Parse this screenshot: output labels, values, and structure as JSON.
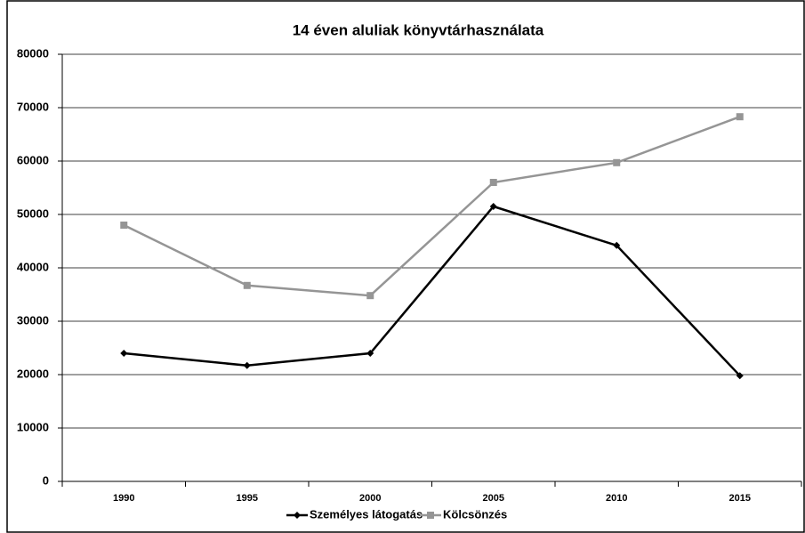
{
  "chart_data": {
    "type": "line",
    "title": "14 éven aluliak könyvtárhasználata",
    "categories": [
      "1990",
      "1995",
      "2000",
      "2005",
      "2010",
      "2015"
    ],
    "series": [
      {
        "name": "Személyes látogatás",
        "color": "#000000",
        "marker": "diamond",
        "values": [
          24000,
          21700,
          24000,
          51500,
          44200,
          19800
        ]
      },
      {
        "name": "Kölcsönzés",
        "color": "#959595",
        "marker": "square",
        "values": [
          48000,
          36700,
          34800,
          56000,
          59700,
          68300
        ]
      }
    ],
    "ylim": [
      0,
      80000
    ],
    "yticks": [
      0,
      10000,
      20000,
      30000,
      40000,
      50000,
      60000,
      70000,
      80000
    ],
    "grid": true,
    "legend": "bottom"
  }
}
